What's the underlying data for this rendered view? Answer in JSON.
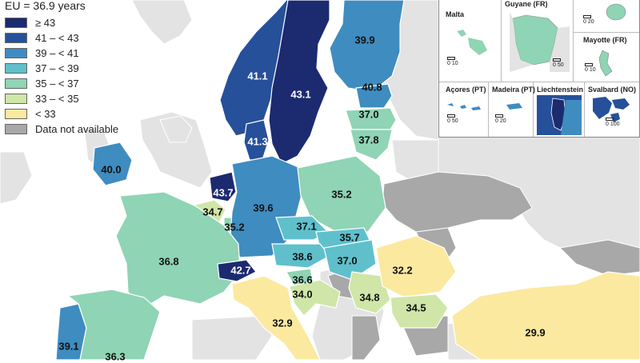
{
  "legend": {
    "title": "EU = 36.9 years",
    "items": [
      {
        "label": "≥ 43",
        "color": "#1c2a70"
      },
      {
        "label": "41 – < 43",
        "color": "#27509a"
      },
      {
        "label": "39 – < 41",
        "color": "#3f8cc0"
      },
      {
        "label": "37 – < 39",
        "color": "#5fc0cc"
      },
      {
        "label": "35 – < 37",
        "color": "#8fd4b4"
      },
      {
        "label": "33 – < 35",
        "color": "#cfe6a8"
      },
      {
        "label": "< 33",
        "color": "#fbe9a0"
      },
      {
        "label": "Data not available",
        "color": "#a8a8a8"
      }
    ]
  },
  "colors": {
    "non_member": "#e3e3e3",
    "sea": "#ffffff",
    "border": "#ffffff"
  },
  "map_values": [
    {
      "id": "sweden",
      "value": "43.1"
    },
    {
      "id": "norway",
      "value": "41.1"
    },
    {
      "id": "finland",
      "value": "39.9"
    },
    {
      "id": "estonia",
      "value": "40.8"
    },
    {
      "id": "latvia",
      "value": "37.0"
    },
    {
      "id": "lithuania",
      "value": "37.8"
    },
    {
      "id": "denmark",
      "value": "41.3"
    },
    {
      "id": "ireland",
      "value": "40.0"
    },
    {
      "id": "netherlands",
      "value": "43.7"
    },
    {
      "id": "belgium",
      "value": "34.7"
    },
    {
      "id": "luxembourg",
      "value": "35.2"
    },
    {
      "id": "germany",
      "value": "39.6"
    },
    {
      "id": "poland",
      "value": "35.2"
    },
    {
      "id": "czechia",
      "value": "37.1"
    },
    {
      "id": "slovakia",
      "value": "35.7"
    },
    {
      "id": "austria",
      "value": "38.6"
    },
    {
      "id": "hungary",
      "value": "37.0"
    },
    {
      "id": "france",
      "value": "36.8"
    },
    {
      "id": "switzerland",
      "value": "42.7"
    },
    {
      "id": "slovenia",
      "value": "36.6"
    },
    {
      "id": "croatia",
      "value": "34.0"
    },
    {
      "id": "serbia",
      "value": "34.8"
    },
    {
      "id": "romania",
      "value": "32.2"
    },
    {
      "id": "bulgaria",
      "value": "34.5"
    },
    {
      "id": "italy",
      "value": "32.9"
    },
    {
      "id": "turkey",
      "value": "29.9"
    },
    {
      "id": "portugal",
      "value": "39.1"
    },
    {
      "id": "spain",
      "value": "36.3"
    }
  ],
  "insets": [
    {
      "id": "malta",
      "name": "Malta",
      "scale": "0  10"
    },
    {
      "id": "guyane",
      "name": "Guyane (FR)",
      "scale": "0  50"
    },
    {
      "id": "mayotte",
      "name": "Mayotte (FR)",
      "scale": "0  10"
    },
    {
      "id": "acores",
      "name": "Açores (PT)",
      "scale": "0  50"
    },
    {
      "id": "madeira",
      "name": "Madeira (PT)",
      "scale": "0  20"
    },
    {
      "id": "liechtenstein",
      "name": "Liechtenstein",
      "scale": ""
    },
    {
      "id": "svalbard",
      "name": "Svalbard (NO)",
      "scale": "0 100"
    }
  ],
  "reunion_scale": "0  20"
}
